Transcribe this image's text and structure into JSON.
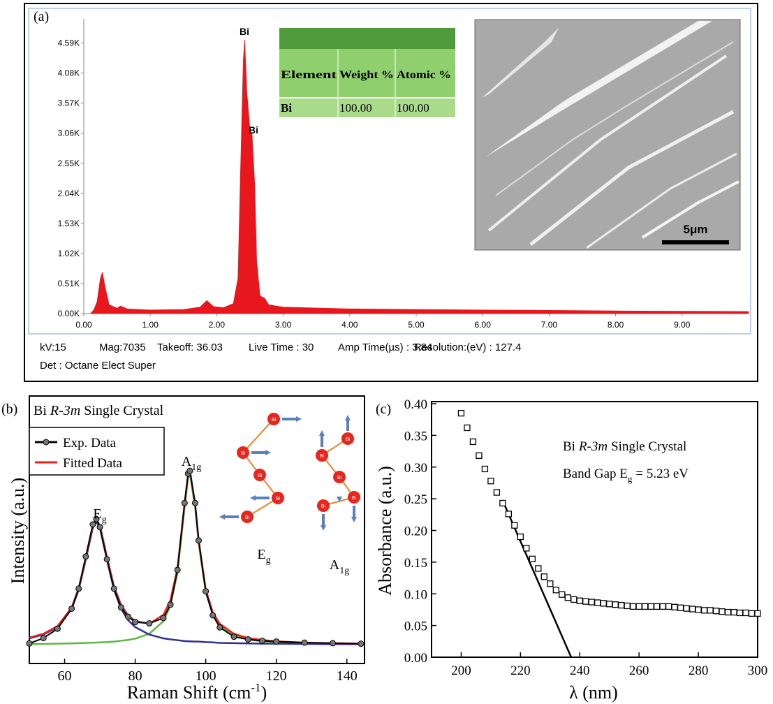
{
  "chart_data": [
    {
      "type": "area",
      "panel": "(a)",
      "color": "#e8171d",
      "x": [
        0.1,
        0.15,
        0.2,
        0.25,
        0.28,
        0.32,
        0.38,
        0.5,
        0.55,
        0.65,
        1.0,
        1.5,
        1.75,
        1.85,
        1.95,
        2.1,
        2.25,
        2.32,
        2.36,
        2.4,
        2.42,
        2.45,
        2.5,
        2.53,
        2.57,
        2.6,
        2.65,
        2.72,
        2.78,
        3.0,
        3.3,
        4.0,
        5.0,
        6.0,
        7.0,
        8.0,
        9.0,
        10.0
      ],
      "values": [
        0,
        60,
        200,
        600,
        700,
        450,
        150,
        90,
        130,
        80,
        60,
        70,
        110,
        220,
        120,
        100,
        170,
        600,
        2500,
        4300,
        4640,
        3800,
        3100,
        3050,
        2200,
        900,
        300,
        260,
        150,
        110,
        100,
        80,
        70,
        60,
        55,
        45,
        40,
        35
      ],
      "xlim": [
        0,
        10
      ],
      "ylim": [
        0,
        5000
      ],
      "xticks": [
        {
          "value": 0,
          "label": "0.00"
        },
        {
          "value": 1,
          "label": "1.00"
        },
        {
          "value": 2,
          "label": "2.00"
        },
        {
          "value": 3,
          "label": "3.00"
        },
        {
          "value": 4,
          "label": "4.00"
        },
        {
          "value": 5,
          "label": "5.00"
        },
        {
          "value": 6,
          "label": "6.00"
        },
        {
          "value": 7,
          "label": "7.00"
        },
        {
          "value": 8,
          "label": "8.00"
        },
        {
          "value": 9,
          "label": "9.00"
        }
      ],
      "yticks": [
        {
          "value": 0,
          "label": "0.00K"
        },
        {
          "value": 510,
          "label": "0.51K"
        },
        {
          "value": 1020,
          "label": "1.02K"
        },
        {
          "value": 1530,
          "label": "1.53K"
        },
        {
          "value": 2040,
          "label": "2.04K"
        },
        {
          "value": 2550,
          "label": "2.55K"
        },
        {
          "value": 3060,
          "label": "3.06K"
        },
        {
          "value": 3570,
          "label": "3.57K"
        },
        {
          "value": 4080,
          "label": "4.08K"
        },
        {
          "value": 4590,
          "label": "4.59K"
        }
      ],
      "peak_labels": [
        "Bi",
        "Bi"
      ],
      "info": [
        "kV:15",
        "Mag:7035",
        "Takeoff: 36.03",
        "Live Time : 30",
        "Amp Time(µs) : 3.84",
        "Resolution:(eV) : 127.4",
        "Det : Octane Elect Super"
      ],
      "table": {
        "columns": [
          "Element",
          "Weight %",
          "Atomic %"
        ],
        "rows": [
          [
            "Bi",
            "100.00",
            "100.00"
          ]
        ]
      },
      "image_scale_bar": "5μm"
    },
    {
      "type": "line",
      "panel": "(b)",
      "title": [
        "Bi",
        "R-3m",
        "Single Crystal"
      ],
      "x": [
        50,
        54,
        58,
        62,
        64,
        66,
        68,
        69,
        70,
        72,
        74,
        76,
        78,
        80,
        84,
        88,
        90,
        92,
        94,
        95,
        95.5,
        97,
        98,
        100,
        102,
        104,
        108,
        112,
        116,
        120,
        128,
        136,
        144
      ],
      "series": [
        {
          "name": "Exp. Data",
          "color": "#000000",
          "marker": "circle",
          "values": [
            7.5,
            9.5,
            13,
            20.5,
            28,
            40,
            52,
            54,
            51,
            39,
            28,
            21,
            17.5,
            15.5,
            15,
            17,
            22,
            35,
            60,
            71,
            72,
            60,
            46,
            27,
            18,
            13.5,
            10,
            9,
            8.5,
            8.2,
            7.8,
            7.6,
            7.4
          ]
        },
        {
          "name": "Fitted Data",
          "color": "#e8231c",
          "values": [
            9.7,
            11.1,
            14.0,
            20.9,
            28.2,
            39.5,
            51.6,
            53.8,
            51.7,
            39.8,
            28.8,
            21.9,
            18.0,
            15.9,
            14.9,
            18.2,
            23.7,
            35.8,
            59.6,
            70.6,
            72.3,
            59.4,
            46.0,
            27.7,
            19.1,
            14.8,
            11.1,
            9.5,
            8.8,
            8.3,
            7.8,
            7.6,
            7.4
          ]
        },
        {
          "color": "#2e3192",
          "values": [
            9.4,
            10.8,
            13.6,
            20.4,
            27.6,
            38.8,
            50.8,
            53,
            50.8,
            38.8,
            27.6,
            20.4,
            16.2,
            13.6,
            10.8,
            9.4,
            9.0,
            8.7,
            8.4,
            8.3,
            8.3,
            8.2,
            8.2,
            8.0,
            7.9,
            7.7,
            7.6,
            7.5,
            7.4,
            7.4,
            7.3,
            7.2,
            7.2
          ]
        },
        {
          "color": "#5cb83f",
          "values": [
            7.3,
            7.3,
            7.4,
            7.5,
            7.6,
            7.7,
            7.8,
            7.8,
            7.9,
            8.0,
            8.2,
            8.5,
            8.8,
            9.3,
            11.1,
            15.8,
            21.7,
            34.1,
            58.2,
            69.3,
            71,
            58.2,
            44.8,
            26.7,
            18.2,
            14.1,
            10.5,
            9.0,
            8.3,
            8.0,
            7.5,
            7.4,
            7.2
          ]
        }
      ],
      "xlim": [
        50,
        145
      ],
      "ylim": [
        0,
        100
      ],
      "xticks": [
        60,
        80,
        100,
        120,
        140
      ],
      "x_label": [
        "Raman Shift (cm",
        "-1",
        ")"
      ],
      "y_label": "Intensity (a.u.)",
      "peak_labels": [
        {
          "text": "E",
          "sub": "g"
        },
        {
          "text": "A",
          "sub": "1g"
        }
      ],
      "inset_atom_label": "Bi",
      "legend": "upper left"
    },
    {
      "type": "scatter",
      "panel": "(c)",
      "color": "#000000",
      "marker": "square",
      "x": [
        200,
        202,
        204,
        206,
        208,
        210,
        212,
        214,
        216,
        218,
        220,
        222,
        224,
        226,
        228,
        230,
        232,
        234,
        236,
        238,
        240,
        242,
        244,
        246,
        248,
        250,
        252,
        254,
        256,
        258,
        260,
        262,
        264,
        266,
        268,
        270,
        272,
        274,
        276,
        278,
        280,
        282,
        284,
        286,
        288,
        290,
        292,
        294,
        296,
        298,
        300
      ],
      "values": [
        0.385,
        0.362,
        0.34,
        0.318,
        0.297,
        0.278,
        0.26,
        0.243,
        0.226,
        0.208,
        0.19,
        0.172,
        0.155,
        0.14,
        0.127,
        0.116,
        0.106,
        0.099,
        0.094,
        0.091,
        0.089,
        0.088,
        0.087,
        0.086,
        0.085,
        0.084,
        0.083,
        0.082,
        0.081,
        0.08,
        0.08,
        0.08,
        0.08,
        0.08,
        0.08,
        0.08,
        0.079,
        0.078,
        0.077,
        0.076,
        0.075,
        0.074,
        0.074,
        0.073,
        0.072,
        0.071,
        0.071,
        0.07,
        0.07,
        0.069,
        0.069
      ],
      "fit_line": {
        "x": [
          214,
          237.1
        ],
        "values": [
          0.247,
          0
        ]
      },
      "xlim": [
        190,
        300
      ],
      "ylim": [
        0,
        0.4
      ],
      "xticks": [
        200,
        220,
        240,
        260,
        280,
        300
      ],
      "yticks": [
        {
          "value": 0,
          "label": "0.00"
        },
        {
          "value": 0.05,
          "label": "0.05"
        },
        {
          "value": 0.1,
          "label": "0.10"
        },
        {
          "value": 0.15,
          "label": "0.15"
        },
        {
          "value": 0.2,
          "label": "0.20"
        },
        {
          "value": 0.25,
          "label": "0.25"
        },
        {
          "value": 0.3,
          "label": "0.30"
        },
        {
          "value": 0.35,
          "label": "0.35"
        },
        {
          "value": 0.4,
          "label": "0.40"
        }
      ],
      "x_label": "λ (nm)",
      "y_label": "Absorbance (a.u.)",
      "annotations": [
        [
          "Bi",
          "R-3m",
          "Single Crystal"
        ],
        [
          "Band Gap E",
          "g",
          "= 5.23 eV"
        ]
      ]
    }
  ]
}
